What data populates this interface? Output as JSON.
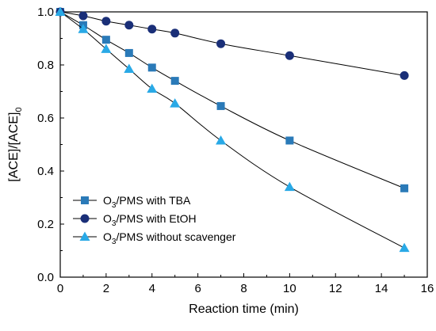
{
  "chart_data": {
    "type": "line",
    "xlabel": "Reaction time (min)",
    "ylabel": {
      "base": "[ACE]/[ACE]",
      "subscript": "0"
    },
    "xlim": [
      0,
      16
    ],
    "ylim": [
      0.0,
      1.0
    ],
    "xticks": [
      0,
      2,
      4,
      6,
      8,
      10,
      12,
      14,
      16
    ],
    "yticks": [
      0.0,
      0.2,
      0.4,
      0.6,
      0.8,
      1.0
    ],
    "xtick_labels": [
      "0",
      "2",
      "4",
      "6",
      "8",
      "10",
      "12",
      "14",
      "16"
    ],
    "ytick_labels": [
      "0.0",
      "0.2",
      "0.4",
      "0.6",
      "0.8",
      "1.0"
    ],
    "grid": false,
    "legend_position": "bottom-left",
    "series": [
      {
        "name": {
          "prefix": "O",
          "subscript": "3",
          "suffix": "/PMS with TBA"
        },
        "marker": "square",
        "color": "#2a7ab8",
        "x": [
          0,
          1,
          2,
          3,
          4,
          5,
          7,
          10,
          15
        ],
        "y": [
          1.0,
          0.95,
          0.895,
          0.845,
          0.79,
          0.74,
          0.645,
          0.515,
          0.335
        ]
      },
      {
        "name": {
          "prefix": "O",
          "subscript": "3",
          "suffix": "/PMS with EtOH"
        },
        "marker": "circle",
        "color": "#1a2f78",
        "x": [
          0,
          1,
          2,
          3,
          4,
          5,
          7,
          10,
          15
        ],
        "y": [
          1.0,
          0.985,
          0.965,
          0.95,
          0.935,
          0.92,
          0.88,
          0.835,
          0.76
        ]
      },
      {
        "name": {
          "prefix": "O",
          "subscript": "3",
          "suffix": "/PMS without scavenger"
        },
        "marker": "triangle",
        "color": "#29a9e6",
        "x": [
          0,
          1,
          2,
          3,
          4,
          5,
          7,
          10,
          15
        ],
        "y": [
          1.0,
          0.935,
          0.86,
          0.785,
          0.71,
          0.655,
          0.515,
          0.34,
          0.11
        ]
      }
    ]
  }
}
